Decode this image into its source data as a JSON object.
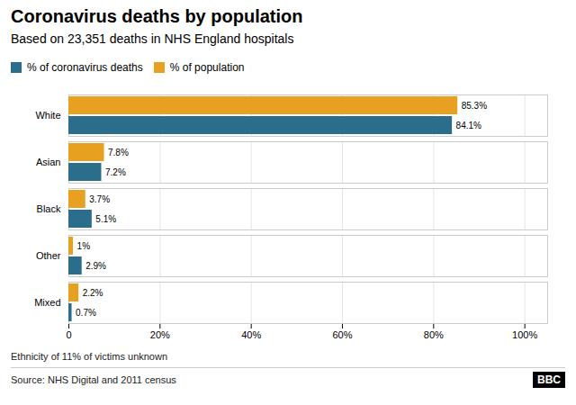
{
  "chart_data": {
    "type": "bar",
    "orientation": "horizontal",
    "title": "Coronavirus deaths by population",
    "subtitle": "Based on 23,351 deaths in NHS England hospitals",
    "footnote": "Ethnicity of 11% of victims unknown",
    "source": "Source: NHS Digital and 2011 census",
    "logo": "BBC",
    "categories": [
      "White",
      "Asian",
      "Black",
      "Other",
      "Mixed"
    ],
    "series": [
      {
        "name": "% of coronavirus deaths",
        "color": "#2a6e8c",
        "values": [
          84.1,
          7.2,
          5.1,
          2.9,
          0.7
        ],
        "value_labels": [
          "84.1%",
          "7.2%",
          "5.1%",
          "2.9%",
          "0.7%"
        ]
      },
      {
        "name": "% of population",
        "color": "#e8a020",
        "values": [
          85.3,
          7.8,
          3.7,
          1.0,
          2.2
        ],
        "value_labels": [
          "85.3%",
          "7.8%",
          "3.7%",
          "1%",
          "2.2%"
        ]
      }
    ],
    "xlim": [
      0,
      105
    ],
    "xticks": [
      0,
      {
        "value": 20,
        "label": "20%"
      },
      {
        "value": 40,
        "label": "40%"
      },
      {
        "value": 60,
        "label": "60%"
      },
      {
        "value": 80,
        "label": "80%"
      },
      {
        "value": 100,
        "label": "100%"
      }
    ],
    "grid": true,
    "legend": "top left",
    "data_labels": true
  }
}
